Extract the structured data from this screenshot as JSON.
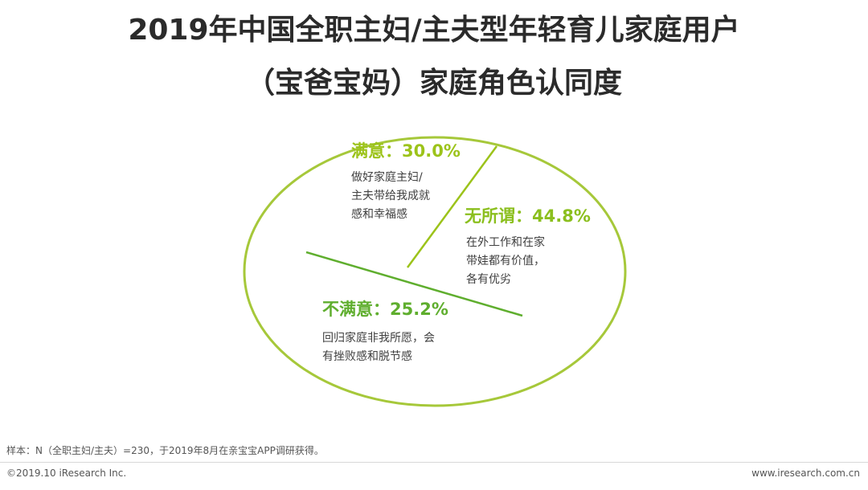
{
  "title": {
    "line1": "2019年中国全职主妇/主夫型年轻育儿家庭用户",
    "line2": "（宝爸宝妈）家庭角色认同度"
  },
  "chart_data": {
    "type": "pie",
    "slices": [
      {
        "name": "满意",
        "value": 30.0,
        "label": "满意：30.0%",
        "description": [
          "做好家庭主妇/",
          "主夫带给我成就",
          "感和幸福感"
        ],
        "color": "#9CC31A"
      },
      {
        "name": "无所谓",
        "value": 44.8,
        "label": "无所谓：44.8%",
        "description": [
          "在外工作和在家",
          "带娃都有价值，",
          "各有优劣"
        ],
        "color": "#8BBF1E"
      },
      {
        "name": "不满意",
        "value": 25.2,
        "label": "不满意：25.2%",
        "description": [
          "回归家庭非我所愿，会",
          "有挫败感和脱节感"
        ],
        "color": "#5FAE2E"
      }
    ],
    "outline_color": "#A6C83A"
  },
  "footer": {
    "note": "样本：N（全职主妇/主夫）=230，于2019年8月在亲宝宝APP调研获得。",
    "copyright": "©2019.10 iResearch Inc.",
    "website": "www.iresearch.com.cn"
  }
}
